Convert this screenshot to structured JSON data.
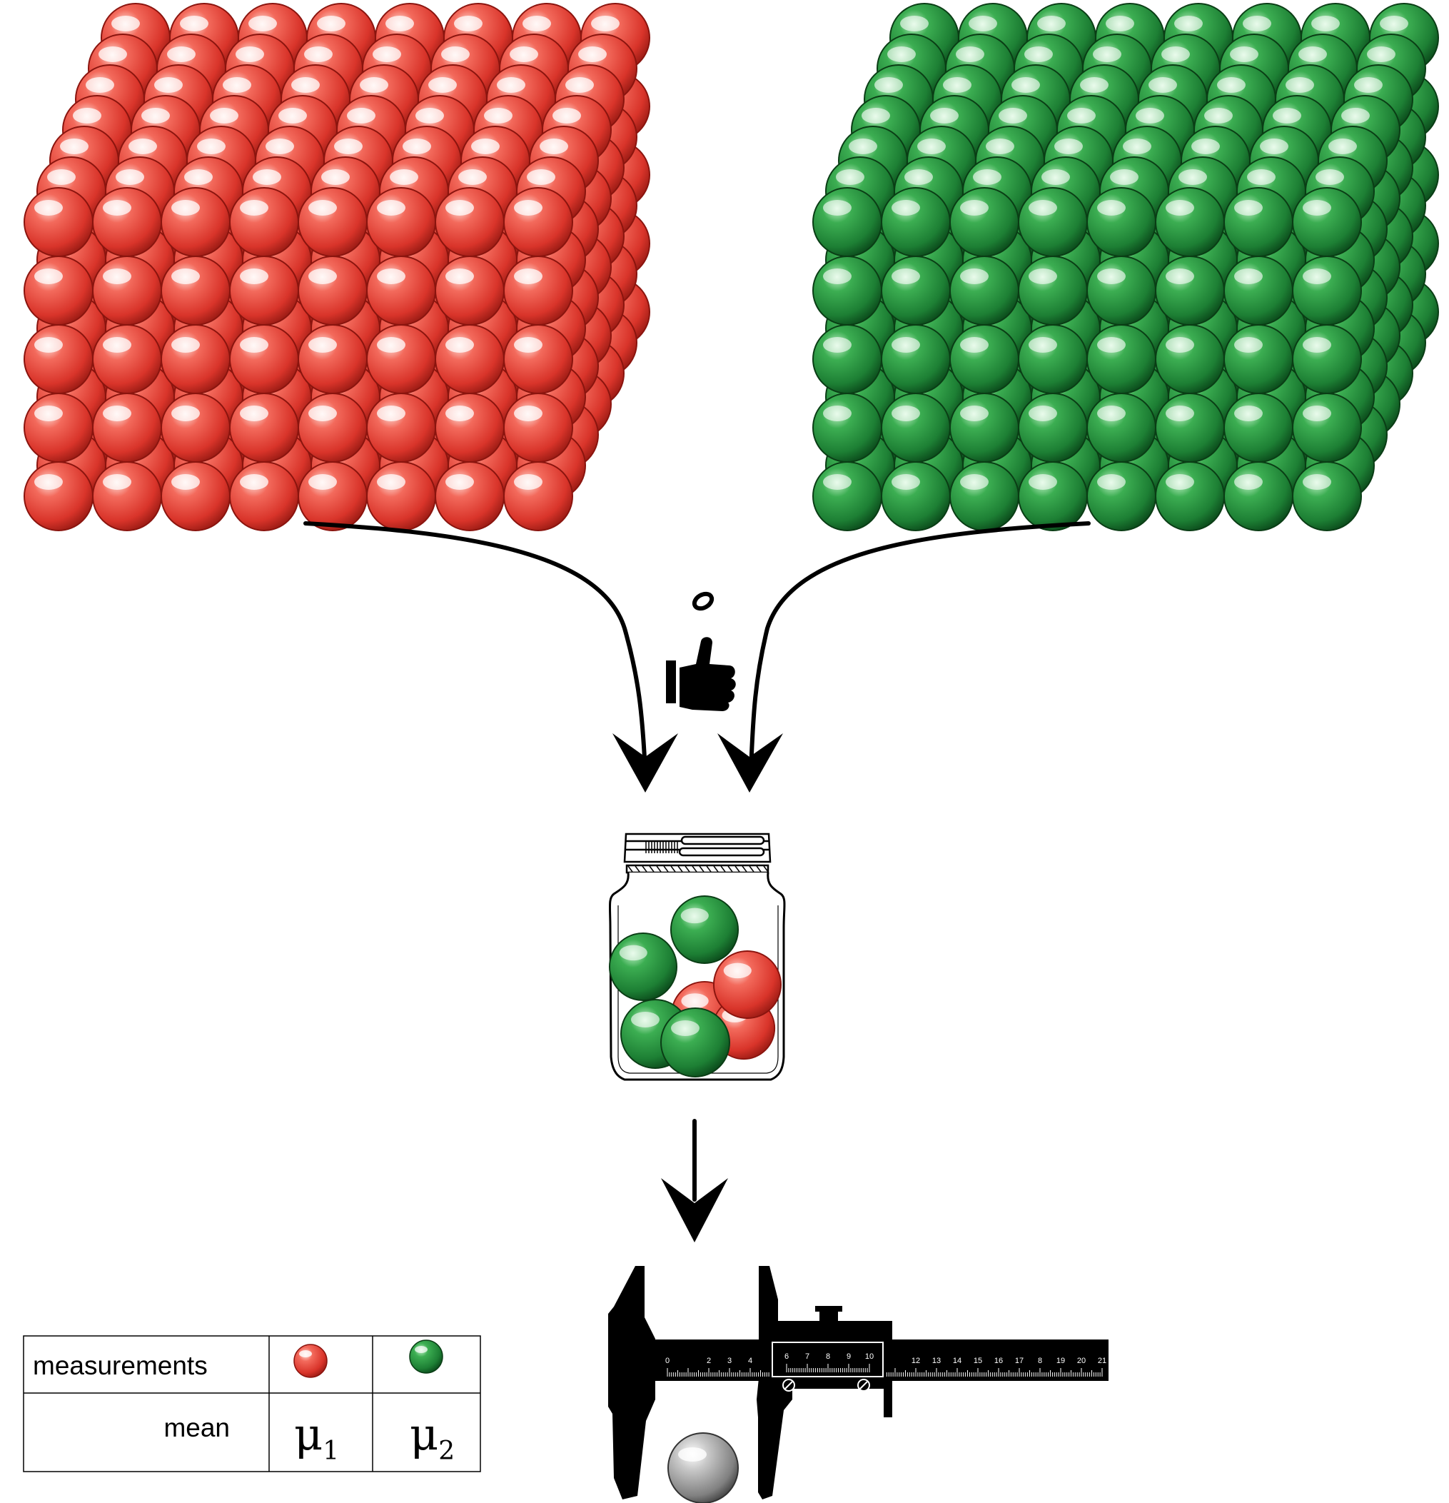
{
  "colors": {
    "red": "#e8443a",
    "green": "#1f8a3a",
    "grey": "#9a9a9a",
    "arrow": "#000000"
  },
  "icons": {
    "coin_flip": "hand-tossing-coin-icon",
    "jar": "jar-icon",
    "caliper": "vernier-caliper-icon"
  },
  "table": {
    "row1_label": "measurements",
    "row2_label": "mean",
    "mu1": "μ",
    "mu1_sub": "1",
    "mu2": "μ",
    "mu2_sub": "2"
  },
  "caliper_scale": {
    "main": [
      "0",
      "",
      "2",
      "3",
      "4",
      "",
      "6",
      "7",
      "8",
      "9",
      "10",
      "",
      "12",
      "13",
      "14",
      "15",
      "16",
      "17",
      "8",
      "19",
      "20",
      "21"
    ],
    "vernier": [
      "6",
      "7",
      "8",
      "9",
      "10"
    ]
  }
}
